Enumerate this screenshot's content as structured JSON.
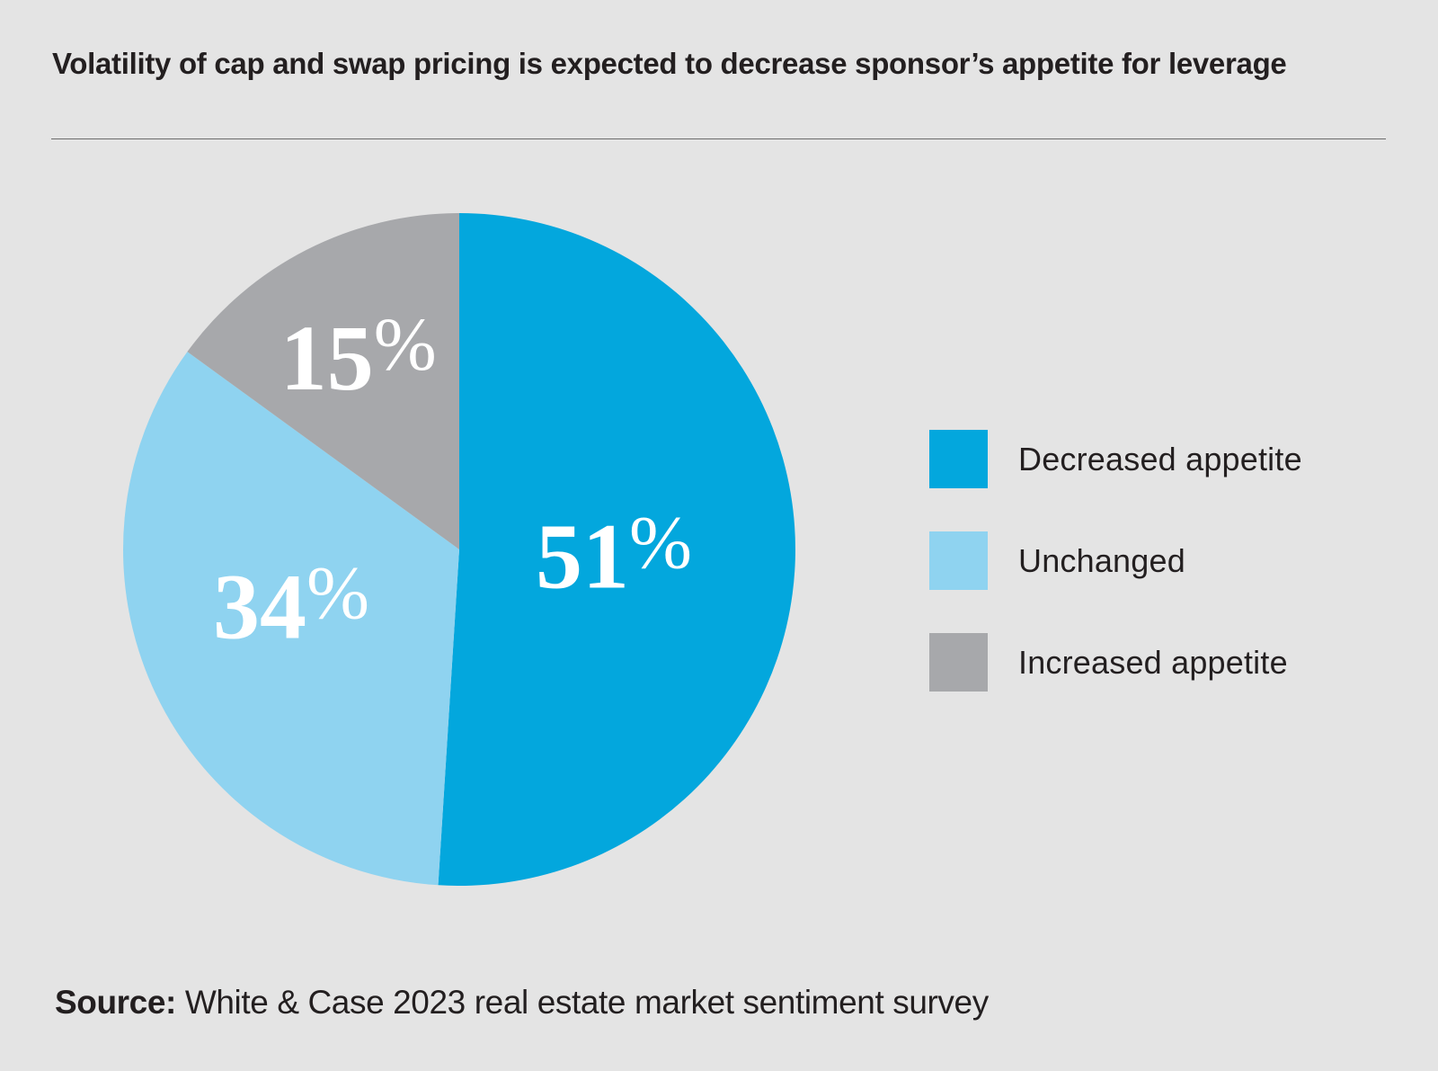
{
  "chart_data": {
    "type": "pie",
    "title": "Volatility of cap and swap pricing is expected to decrease sponsor’s appetite for leverage",
    "start": "12 o'clock",
    "direction": "clockwise",
    "slices": [
      {
        "label": "Decreased appetite",
        "value": 51,
        "display": "51",
        "suffix": "%",
        "color": "#03a7dd"
      },
      {
        "label": "Unchanged",
        "value": 34,
        "display": "34",
        "suffix": "%",
        "color": "#8fd3f0"
      },
      {
        "label": "Increased appetite",
        "value": 15,
        "display": "15",
        "suffix": "%",
        "color": "#a7a8ab"
      }
    ],
    "legend": {
      "placement": "right",
      "entries": [
        "Decreased appetite",
        "Unchanged",
        "Increased appetite"
      ]
    },
    "source": {
      "label": "Source:",
      "text": "White & Case 2023 real estate market sentiment survey"
    }
  }
}
